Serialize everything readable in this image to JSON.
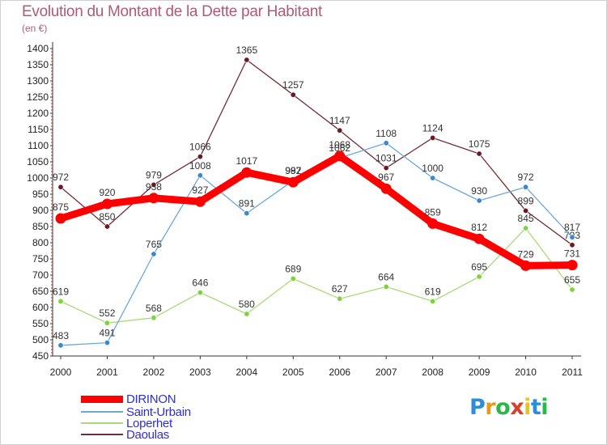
{
  "title": "Evolution du Montant de la Dette par Habitant",
  "unit": "(en €)",
  "logo_text": "Proxiti",
  "logo_colors": [
    "#2a8fd8",
    "#e89a1c",
    "#2ab84a",
    "#d8402a",
    "#e8c41c",
    "#2a8fd8",
    "#2ab84a"
  ],
  "chart_data": {
    "type": "line",
    "x": [
      "2000",
      "2001",
      "2002",
      "2003",
      "2004",
      "2005",
      "2006",
      "2007",
      "2008",
      "2009",
      "2010",
      "2011"
    ],
    "ylim": [
      450,
      1400
    ],
    "yticks": [
      450,
      500,
      550,
      600,
      650,
      700,
      750,
      800,
      850,
      900,
      950,
      1000,
      1050,
      1100,
      1150,
      1200,
      1250,
      1300,
      1350,
      1400
    ],
    "grid": false,
    "legend_position": "bottom-left",
    "series": [
      {
        "name": "Daoulas",
        "color": "#722d3a",
        "marker_color": "#6b1a24",
        "values": [
          972,
          850,
          979,
          1066,
          1365,
          1257,
          1147,
          1031,
          1124,
          1075,
          899,
          793
        ]
      },
      {
        "name": "Loperhet",
        "color": "#a8dc78",
        "marker_color": "#7cd43a",
        "values": [
          619,
          552,
          568,
          646,
          580,
          689,
          627,
          664,
          619,
          695,
          845,
          655
        ]
      },
      {
        "name": "Saint-Urbain",
        "color": "#6ea8d8",
        "marker_color": "#3c88cc",
        "values": [
          483,
          491,
          765,
          1008,
          891,
          992,
          1062,
          1108,
          1000,
          930,
          972,
          817
        ]
      },
      {
        "name": "DIRINON",
        "color": "#ff0000",
        "marker_color": "#ff0000",
        "values": [
          875,
          920,
          938,
          927,
          1017,
          987,
          1068,
          967,
          859,
          812,
          729,
          731
        ]
      }
    ],
    "legend_order": [
      "DIRINON",
      "Saint-Urbain",
      "Loperhet",
      "Daoulas"
    ]
  }
}
